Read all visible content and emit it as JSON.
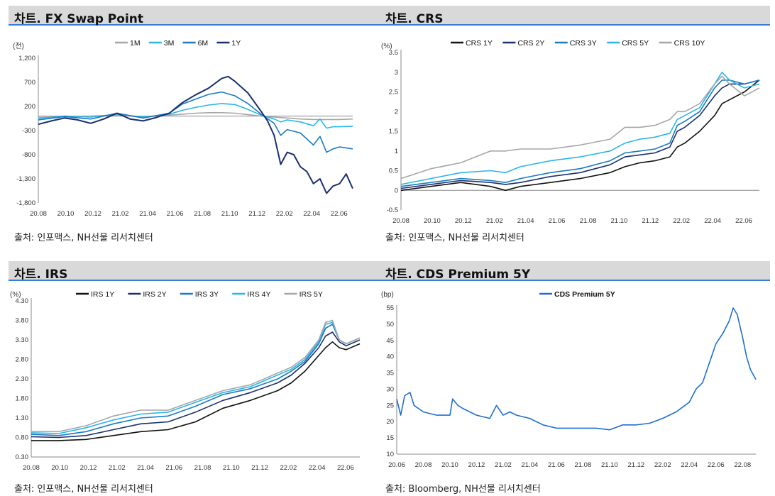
{
  "panels": [
    {
      "title": "차트. FX Swap Point",
      "source": "출처: 인포맥스, NH선물 리서치센터",
      "chart_data": {
        "type": "line",
        "unit_label": "(전)",
        "ylim": [
          -1800,
          1200
        ],
        "y_ticks": [
          "1,200",
          "700",
          "200",
          "-300",
          "-800",
          "-1,300",
          "-1,800"
        ],
        "y_tick_values": [
          1200,
          700,
          200,
          -300,
          -800,
          -1300,
          -1800
        ],
        "x_ticks": [
          "20.08",
          "20.10",
          "20.12",
          "21.02",
          "21.04",
          "21.06",
          "21.08",
          "21.10",
          "21.12",
          "22.02",
          "22.04",
          "22.06"
        ],
        "x_range": [
          0,
          24
        ],
        "legend_position": "top-center",
        "series": [
          {
            "name": "1M",
            "color": "#a6a6a6",
            "x": [
              0,
              2,
              4,
              6,
              8,
              10,
              11,
              12,
              13,
              14,
              15,
              16,
              17,
              18,
              19,
              20,
              21,
              22,
              23,
              24
            ],
            "values": [
              -30,
              -10,
              0,
              20,
              -20,
              20,
              40,
              60,
              70,
              70,
              60,
              30,
              0,
              -20,
              -40,
              -60,
              -70,
              -70,
              -70,
              -60
            ]
          },
          {
            "name": "3M",
            "color": "#29b6e8",
            "x": [
              0,
              2,
              4,
              6,
              8,
              10,
              11,
              12,
              13,
              14,
              15,
              16,
              17,
              18,
              18.5,
              19,
              20,
              21,
              21.5,
              22,
              22.5,
              23,
              24
            ],
            "values": [
              -50,
              0,
              -20,
              40,
              -20,
              40,
              120,
              180,
              230,
              260,
              240,
              140,
              20,
              -60,
              -120,
              -80,
              -120,
              -200,
              -60,
              -250,
              -220,
              -220,
              -210
            ]
          },
          {
            "name": "6M",
            "color": "#1a7ac0",
            "x": [
              0,
              2,
              4,
              6,
              8,
              10,
              11,
              12,
              13,
              14,
              15,
              16,
              17,
              18,
              18.5,
              19,
              20,
              21,
              21.5,
              22,
              22.5,
              23,
              24
            ],
            "values": [
              -80,
              -10,
              -60,
              60,
              -40,
              60,
              250,
              350,
              450,
              500,
              420,
              260,
              40,
              -150,
              -400,
              -280,
              -350,
              -600,
              -420,
              -750,
              -680,
              -640,
              -680
            ]
          },
          {
            "name": "1Y",
            "color": "#1a2f6e",
            "x": [
              0,
              1,
              2,
              3,
              4,
              5,
              6,
              7,
              8,
              9,
              10,
              11,
              12,
              13,
              14,
              14.5,
              15,
              16,
              17,
              17.5,
              18,
              18.5,
              19,
              19.5,
              20,
              20.5,
              21,
              21.5,
              22,
              22.5,
              23,
              23.5,
              24
            ],
            "values": [
              -170,
              -100,
              -40,
              -80,
              -150,
              -60,
              60,
              -60,
              -100,
              -30,
              60,
              280,
              440,
              580,
              780,
              820,
              720,
              480,
              100,
              -100,
              -400,
              -1000,
              -750,
              -800,
              -1050,
              -1150,
              -1400,
              -1300,
              -1600,
              -1450,
              -1400,
              -1200,
              -1500
            ]
          }
        ]
      }
    },
    {
      "title": "차트. CRS",
      "source": "출처: 인포맥스, NH선물 리서치센터",
      "chart_data": {
        "type": "line",
        "unit_label": "(%)",
        "ylim": [
          -0.5,
          3.5
        ],
        "y_ticks": [
          "3.5",
          "3",
          "2.5",
          "2",
          "1.5",
          "1",
          "0.5",
          "0",
          "-0.5"
        ],
        "y_tick_values": [
          3.5,
          3,
          2.5,
          2,
          1.5,
          1,
          0.5,
          0,
          -0.5
        ],
        "x_ticks": [
          "20.08",
          "20.10",
          "20.12",
          "21.02",
          "21.04",
          "21.06",
          "21.08",
          "21.10",
          "21.12",
          "22.02",
          "22.04",
          "22.06"
        ],
        "x_range": [
          0,
          24
        ],
        "legend_position": "top-center",
        "series": [
          {
            "name": "CRS 1Y",
            "color": "#111111",
            "x": [
              0,
              2,
              4,
              6,
              7,
              8,
              10,
              12,
              14,
              15,
              16,
              17,
              18,
              18.5,
              19,
              20,
              21,
              21.5,
              22,
              23,
              24
            ],
            "values": [
              0.0,
              0.1,
              0.2,
              0.1,
              0.0,
              0.1,
              0.2,
              0.3,
              0.45,
              0.6,
              0.7,
              0.75,
              0.85,
              1.1,
              1.2,
              1.5,
              1.9,
              2.2,
              2.3,
              2.5,
              2.8
            ]
          },
          {
            "name": "CRS 2Y",
            "color": "#1a2f6e",
            "x": [
              0,
              2,
              4,
              6,
              7,
              8,
              10,
              12,
              14,
              15,
              16,
              17,
              18,
              18.5,
              19,
              20,
              21,
              21.5,
              22,
              23,
              24
            ],
            "values": [
              0.05,
              0.15,
              0.25,
              0.2,
              0.15,
              0.2,
              0.35,
              0.45,
              0.65,
              0.85,
              0.9,
              0.95,
              1.1,
              1.5,
              1.6,
              1.9,
              2.4,
              2.6,
              2.7,
              2.7,
              2.8
            ]
          },
          {
            "name": "CRS 3Y",
            "color": "#1a7ac0",
            "x": [
              0,
              2,
              4,
              6,
              7,
              8,
              10,
              12,
              14,
              15,
              16,
              17,
              18,
              18.5,
              19,
              20,
              21,
              21.5,
              22,
              23,
              24
            ],
            "values": [
              0.1,
              0.2,
              0.3,
              0.25,
              0.2,
              0.3,
              0.45,
              0.55,
              0.75,
              0.95,
              1.0,
              1.05,
              1.2,
              1.65,
              1.75,
              2.0,
              2.6,
              2.8,
              2.8,
              2.7,
              2.8
            ]
          },
          {
            "name": "CRS 5Y",
            "color": "#29b6e8",
            "x": [
              0,
              2,
              4,
              6,
              7,
              8,
              10,
              12,
              14,
              15,
              16,
              17,
              18,
              18.5,
              19,
              20,
              21,
              21.5,
              22,
              23,
              24
            ],
            "values": [
              0.15,
              0.3,
              0.45,
              0.5,
              0.45,
              0.6,
              0.75,
              0.85,
              1.0,
              1.2,
              1.3,
              1.35,
              1.45,
              1.8,
              1.9,
              2.1,
              2.7,
              3.0,
              2.8,
              2.6,
              2.7
            ]
          },
          {
            "name": "CRS 10Y",
            "color": "#a6a6a6",
            "x": [
              0,
              2,
              4,
              6,
              7,
              8,
              10,
              12,
              14,
              15,
              16,
              17,
              18,
              18.5,
              19,
              20,
              21,
              21.5,
              22,
              23,
              24
            ],
            "values": [
              0.3,
              0.55,
              0.7,
              1.0,
              1.0,
              1.05,
              1.05,
              1.15,
              1.3,
              1.6,
              1.6,
              1.65,
              1.8,
              2.0,
              2.0,
              2.2,
              2.7,
              2.9,
              2.7,
              2.4,
              2.6
            ]
          }
        ]
      }
    },
    {
      "title": "차트. IRS",
      "source": "출처: 인포맥스, NH선물 리서치센터",
      "chart_data": {
        "type": "line",
        "unit_label": "(%)",
        "ylim": [
          0.3,
          4.3
        ],
        "y_ticks": [
          "4.30",
          "3.80",
          "3.30",
          "2.80",
          "2.30",
          "1.80",
          "1.30",
          "0.80",
          "0.30"
        ],
        "y_tick_values": [
          4.3,
          3.8,
          3.3,
          2.8,
          2.3,
          1.8,
          1.3,
          0.8,
          0.3
        ],
        "x_ticks": [
          "20.08",
          "20.10",
          "20.12",
          "21.02",
          "21.04",
          "21.06",
          "21.08",
          "21.10",
          "21.12",
          "22.02",
          "22.04",
          "22.06"
        ],
        "x_range": [
          0,
          24
        ],
        "legend_position": "top-center",
        "series": [
          {
            "name": "IRS 1Y",
            "color": "#111111",
            "x": [
              0,
              2,
              4,
              6,
              8,
              10,
              12,
              14,
              16,
              18,
              19,
              20,
              21,
              21.5,
              22,
              22.5,
              23,
              24
            ],
            "values": [
              0.72,
              0.72,
              0.75,
              0.85,
              0.95,
              1.0,
              1.2,
              1.55,
              1.75,
              2.0,
              2.2,
              2.5,
              2.9,
              3.1,
              3.25,
              3.1,
              3.05,
              3.2
            ]
          },
          {
            "name": "IRS 2Y",
            "color": "#1a2f6e",
            "x": [
              0,
              2,
              4,
              6,
              8,
              10,
              12,
              14,
              16,
              18,
              19,
              20,
              21,
              21.5,
              22,
              22.5,
              23,
              24
            ],
            "values": [
              0.82,
              0.8,
              0.85,
              1.0,
              1.15,
              1.2,
              1.45,
              1.75,
              1.95,
              2.2,
              2.4,
              2.7,
              3.1,
              3.4,
              3.5,
              3.25,
              3.15,
              3.3
            ]
          },
          {
            "name": "IRS 3Y",
            "color": "#1a7ac0",
            "x": [
              0,
              2,
              4,
              6,
              8,
              10,
              12,
              14,
              16,
              18,
              19,
              20,
              21,
              21.5,
              22,
              22.5,
              23,
              24
            ],
            "values": [
              0.88,
              0.85,
              0.95,
              1.15,
              1.3,
              1.35,
              1.6,
              1.9,
              2.05,
              2.3,
              2.5,
              2.75,
              3.2,
              3.6,
              3.7,
              3.3,
              3.2,
              3.35
            ]
          },
          {
            "name": "IRS 4Y",
            "color": "#29b6e8",
            "x": [
              0,
              2,
              4,
              6,
              8,
              10,
              12,
              14,
              16,
              18,
              19,
              20,
              21,
              21.5,
              22,
              22.5,
              23,
              24
            ],
            "values": [
              0.92,
              0.9,
              1.05,
              1.25,
              1.4,
              1.45,
              1.7,
              1.95,
              2.1,
              2.4,
              2.55,
              2.8,
              3.25,
              3.7,
              3.75,
              3.3,
              3.2,
              3.35
            ]
          },
          {
            "name": "IRS 5Y",
            "color": "#a6a6a6",
            "x": [
              0,
              2,
              4,
              6,
              8,
              10,
              12,
              14,
              16,
              18,
              19,
              20,
              21,
              21.5,
              22,
              22.5,
              23,
              24
            ],
            "values": [
              0.95,
              0.95,
              1.1,
              1.35,
              1.5,
              1.5,
              1.75,
              2.0,
              2.15,
              2.45,
              2.6,
              2.85,
              3.3,
              3.75,
              3.8,
              3.3,
              3.2,
              3.35
            ]
          }
        ]
      }
    },
    {
      "title": "차트. CDS Premium 5Y",
      "source": "출처: Bloomberg, NH선물 리서치센터",
      "chart_data": {
        "type": "line",
        "unit_label": "(bp)",
        "ylim": [
          10,
          55
        ],
        "y_ticks": [
          "55",
          "50",
          "45",
          "40",
          "35",
          "30",
          "25",
          "20",
          "15",
          "10"
        ],
        "y_tick_values": [
          55,
          50,
          45,
          40,
          35,
          30,
          25,
          20,
          15,
          10
        ],
        "x_ticks": [
          "20.06",
          "20.08",
          "20.10",
          "20.12",
          "21.02",
          "21.04",
          "21.06",
          "21.08",
          "21.10",
          "21.12",
          "22.02",
          "22.04",
          "22.06",
          "22.08"
        ],
        "x_range": [
          0,
          27
        ],
        "legend_position": "top-center",
        "series": [
          {
            "name": "CDS Premium 5Y",
            "color": "#1f6fd1",
            "x": [
              0,
              0.3,
              0.6,
              1,
              1.3,
              2,
              3,
              4,
              4.2,
              4.6,
              5,
              6,
              7,
              7.5,
              8,
              8.5,
              9,
              10,
              11,
              12,
              13,
              14,
              15,
              16,
              17,
              18,
              19,
              20,
              21,
              22,
              22.5,
              23,
              23.5,
              24,
              24.5,
              25,
              25.3,
              25.6,
              26,
              26.3,
              26.6,
              27
            ],
            "values": [
              27,
              22,
              28,
              29,
              25,
              23,
              22,
              22,
              27,
              25,
              24,
              22,
              21,
              25,
              22,
              23,
              22,
              21,
              19,
              18,
              18,
              18,
              18,
              17.5,
              19,
              19,
              19.5,
              21,
              23,
              26,
              30,
              32,
              38,
              44,
              47,
              51,
              55,
              53,
              46,
              40,
              36,
              33
            ]
          }
        ]
      }
    }
  ]
}
